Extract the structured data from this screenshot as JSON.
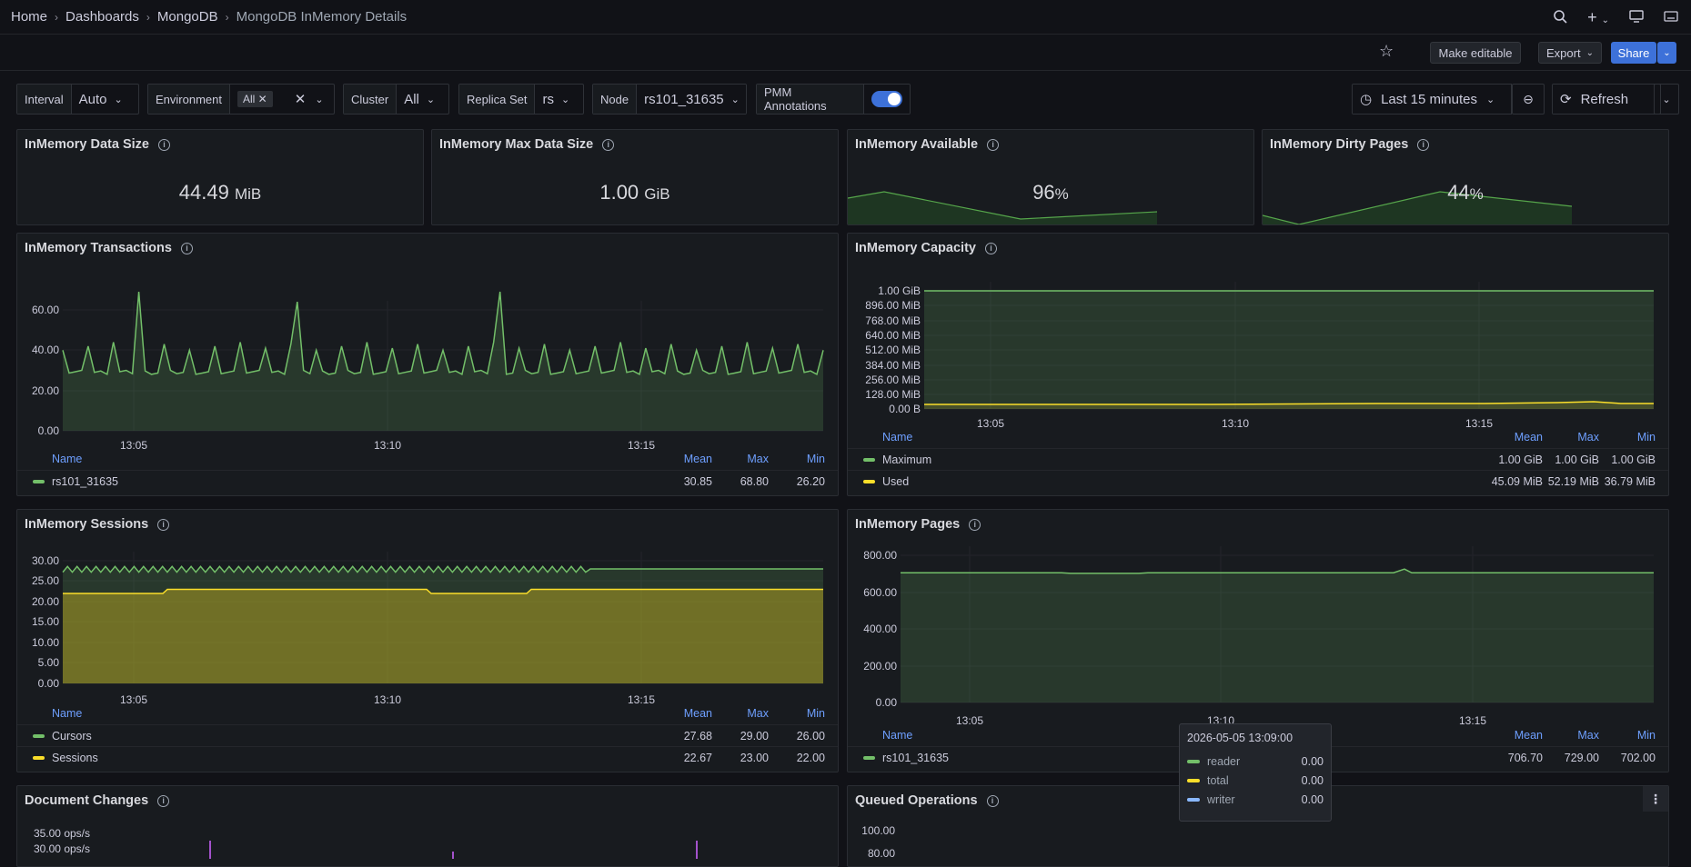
{
  "breadcrumb": {
    "home": "Home",
    "dashboards": "Dashboards",
    "mongodb": "MongoDB",
    "current": "MongoDB InMemory Details"
  },
  "toolbar": {
    "make_editable": "Make editable",
    "export": "Export",
    "share": "Share"
  },
  "variables": {
    "interval": {
      "label": "Interval",
      "value": "Auto"
    },
    "environment": {
      "label": "Environment",
      "value": "All"
    },
    "cluster": {
      "label": "Cluster",
      "value": "All"
    },
    "replica_set": {
      "label": "Replica Set",
      "value": "rs"
    },
    "node": {
      "label": "Node",
      "value": "rs101_31635"
    },
    "annotations": {
      "label": "PMM Annotations"
    }
  },
  "time": {
    "range": "Last 15 minutes",
    "refresh": "Refresh"
  },
  "stats": [
    {
      "title": "InMemory Data Size",
      "value": "44.49",
      "unit": "MiB"
    },
    {
      "title": "InMemory Max Data Size",
      "value": "1.00",
      "unit": "GiB"
    },
    {
      "title": "InMemory Available",
      "value": "96",
      "unit": "%"
    },
    {
      "title": "InMemory Dirty Pages",
      "value": "44",
      "unit": "%"
    }
  ],
  "panels": {
    "transactions": {
      "title": "InMemory Transactions"
    },
    "capacity": {
      "title": "InMemory Capacity"
    },
    "sessions": {
      "title": "InMemory Sessions"
    },
    "pages": {
      "title": "InMemory Pages"
    },
    "doc_changes": {
      "title": "Document Changes"
    },
    "queued": {
      "title": "Queued Operations"
    }
  },
  "legend_headers": {
    "name": "Name",
    "mean": "Mean",
    "max": "Max",
    "min": "Min"
  },
  "legends": {
    "transactions": [
      {
        "name": "rs101_31635",
        "mean": "30.85",
        "max": "68.80",
        "min": "26.20",
        "color": "#73bf69"
      }
    ],
    "capacity": [
      {
        "name": "Maximum",
        "mean": "1.00 GiB",
        "max": "1.00 GiB",
        "min": "1.00 GiB",
        "color": "#73bf69"
      },
      {
        "name": "Used",
        "mean": "45.09 MiB",
        "max": "52.19 MiB",
        "min": "36.79 MiB",
        "color": "#fade2a"
      }
    ],
    "sessions": [
      {
        "name": "Cursors",
        "mean": "27.68",
        "max": "29.00",
        "min": "26.00",
        "color": "#73bf69"
      },
      {
        "name": "Sessions",
        "mean": "22.67",
        "max": "23.00",
        "min": "22.00",
        "color": "#fade2a"
      }
    ],
    "pages": [
      {
        "name": "rs101_31635",
        "mean": "706.70",
        "max": "729.00",
        "min": "702.00",
        "color": "#73bf69"
      }
    ]
  },
  "axes": {
    "x_ticks": [
      "13:05",
      "13:10",
      "13:15"
    ],
    "transactions_y": [
      "60.00",
      "40.00",
      "20.00",
      "0.00"
    ],
    "capacity_y": [
      "1.00 GiB",
      "896.00 MiB",
      "768.00 MiB",
      "640.00 MiB",
      "512.00 MiB",
      "384.00 MiB",
      "256.00 MiB",
      "128.00 MiB",
      "0.00 B"
    ],
    "sessions_y": [
      "30.00",
      "25.00",
      "20.00",
      "15.00",
      "10.00",
      "5.00",
      "0.00"
    ],
    "pages_y": [
      "800.00",
      "600.00",
      "400.00",
      "200.00",
      "0.00"
    ],
    "doc_y": [
      "35.00 ops/s",
      "30.00 ops/s"
    ],
    "queued_y": [
      "100.00",
      "80.00"
    ]
  },
  "tooltip": {
    "time": "2026-05-05 13:09:00",
    "rows": [
      {
        "name": "reader",
        "value": "0.00",
        "color": "#73bf69"
      },
      {
        "name": "total",
        "value": "0.00",
        "color": "#fade2a"
      },
      {
        "name": "writer",
        "value": "0.00",
        "color": "#8ab8ff"
      }
    ]
  },
  "chart_data": [
    {
      "type": "line",
      "title": "InMemory Transactions",
      "x_range": [
        "13:02",
        "13:17"
      ],
      "ylim": [
        0,
        75
      ],
      "series": [
        {
          "name": "rs101_31635",
          "mean": 30.85,
          "max": 68.8,
          "min": 26.2
        }
      ]
    },
    {
      "type": "area",
      "title": "InMemory Capacity",
      "series": [
        {
          "name": "Maximum",
          "value_gib": 1.0
        },
        {
          "name": "Used",
          "mean_mib": 45.09
        }
      ]
    },
    {
      "type": "area",
      "title": "InMemory Sessions",
      "ylim": [
        0,
        30
      ],
      "series": [
        {
          "name": "Cursors",
          "mean": 27.68,
          "max": 29,
          "min": 26
        },
        {
          "name": "Sessions",
          "mean": 22.67,
          "max": 23,
          "min": 22
        }
      ]
    },
    {
      "type": "area",
      "title": "InMemory Pages",
      "ylim": [
        0,
        800
      ],
      "series": [
        {
          "name": "rs101_31635",
          "mean": 706.7,
          "max": 729,
          "min": 702
        }
      ]
    }
  ]
}
